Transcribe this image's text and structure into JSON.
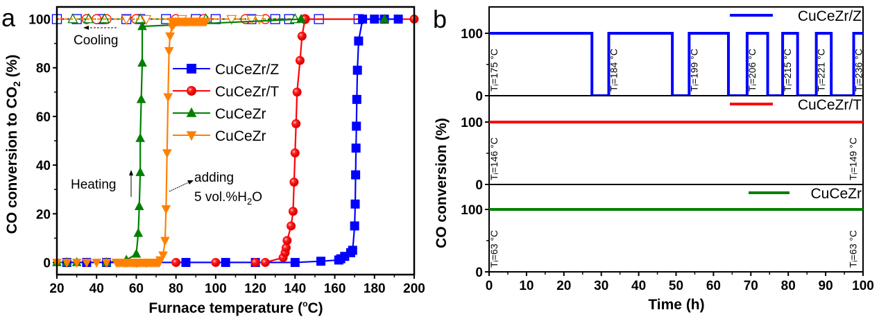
{
  "chart_data": [
    {
      "panel": "a",
      "type": "line",
      "title": "",
      "xlabel": "Furnace temperature (°C)",
      "ylabel": "CO conversion to CO2 (%)",
      "xlim": [
        20,
        200
      ],
      "ylim": [
        -5,
        105
      ],
      "xticks": [
        20,
        40,
        60,
        80,
        100,
        120,
        140,
        160,
        180,
        200
      ],
      "yticks": [
        0,
        20,
        40,
        60,
        80,
        100
      ],
      "legend_position": "center-right",
      "legend": [
        "CuCeZr/Z",
        "CuCeZr/T",
        "CuCeZr",
        "CuCeZr"
      ],
      "annotations": [
        "Cooling",
        "Heating",
        "adding",
        "5 vol.%H2O"
      ],
      "series": [
        {
          "name": "CuCeZr/Z",
          "color": "#0000ff",
          "marker": "square",
          "heating": {
            "x": [
              25,
              35,
              45,
              85,
              105,
              120,
              140,
              153,
              162,
              163,
              165,
              168,
              169,
              170,
              170.3,
              170.5,
              170.7,
              170.9,
              171.1,
              171.4,
              172,
              174,
              180,
              185,
              192
            ],
            "y": [
              0,
              0,
              0,
              0,
              0,
              0,
              0,
              0.5,
              1,
              1.5,
              2.5,
              4,
              5,
              15,
              24,
              36,
              47,
              56,
              67,
              79,
              91,
              100,
              100,
              100,
              100
            ]
          },
          "cooling": {
            "x": [
              20,
              30,
              42,
              55,
              62,
              75,
              90,
              100,
              118,
              130,
              137,
              152,
              172
            ],
            "y": [
              100,
              100,
              100,
              100,
              100,
              100,
              100,
              100,
              100,
              100,
              100,
              100,
              100
            ]
          }
        },
        {
          "name": "CuCeZr/T",
          "color": "#ff0000",
          "marker": "circle",
          "heating": {
            "x": [
              80,
              100,
              120,
              125,
              134,
              135,
              135.5,
              136,
              138,
              139,
              139.5,
              140,
              140.5,
              141,
              142.5,
              143.5,
              145,
              200
            ],
            "y": [
              0,
              0,
              0,
              0,
              2,
              4,
              6,
              9,
              15,
              21,
              33,
              45,
              57,
              70,
              83,
              93,
              100,
              100
            ]
          },
          "cooling": {
            "x": [
              35,
              40,
              45,
              60,
              80,
              94,
              115,
              125,
              145
            ],
            "y": [
              100,
              100,
              100,
              100,
              100,
              100,
              100,
              100,
              100
            ]
          }
        },
        {
          "name": "CuCeZr",
          "color": "#008000",
          "marker": "triangle-up",
          "heating": {
            "x": [
              20,
              25,
              30,
              45,
              55,
              60,
              61,
              61.5,
              62,
              62,
              62.5,
              63,
              63,
              143,
              185
            ],
            "y": [
              0,
              0,
              0,
              0,
              1,
              3.5,
              12,
              23,
              37,
              51,
              67,
              82,
              97,
              100,
              100
            ]
          },
          "cooling": {
            "x": [
              28,
              36,
              44,
              62,
              95,
              140
            ],
            "y": [
              100,
              100,
              100,
              100,
              100,
              100
            ]
          }
        },
        {
          "name": "CuCeZr (adding 5 vol.%H2O)",
          "color": "#ff8000",
          "marker": "triangle-down",
          "heating": {
            "x": [
              20,
              25,
              30,
              35,
              40,
              45,
              50,
              55,
              60,
              65,
              70,
              72,
              73.5,
              74.5,
              75,
              75.5,
              76,
              76.5,
              77,
              78,
              79,
              80,
              85,
              90,
              95
            ],
            "y": [
              0,
              0,
              0,
              0,
              0,
              0,
              0,
              0,
              0,
              0,
              0,
              1,
              3,
              9,
              22,
              45,
              68,
              87,
              93,
              97,
              98,
              99,
              99,
              99,
              99
            ]
          },
          "cooling": {
            "x": [
              55,
              65,
              83,
              108,
              118,
              122
            ],
            "y": [
              100,
              100,
              100,
              100,
              100,
              100
            ]
          }
        }
      ]
    },
    {
      "panel": "b",
      "type": "line",
      "title": "",
      "xlabel": "Time (h)",
      "ylabel": "CO conversion (%)",
      "xlim": [
        0,
        100
      ],
      "xticks": [
        0,
        10,
        20,
        30,
        40,
        50,
        60,
        70,
        80,
        90,
        100
      ],
      "subplots": [
        {
          "name": "CuCeZr/Z",
          "color": "#0000ff",
          "ylim": [
            0,
            100
          ],
          "yticks": [
            0,
            100
          ],
          "legend_position": "top-right",
          "x": [
            0,
            27.5,
            27.5,
            32,
            32,
            49,
            49,
            53.5,
            53.5,
            64,
            64,
            69,
            69,
            74.5,
            74.5,
            78.5,
            78.5,
            82.5,
            82.5,
            87.5,
            87.5,
            91.5,
            91.5,
            97.5,
            97.5,
            101.5,
            101.5,
            105
          ],
          "y": [
            100,
            100,
            0,
            0,
            100,
            100,
            0,
            0,
            100,
            100,
            0,
            0,
            100,
            100,
            0,
            0,
            100,
            100,
            0,
            0,
            100,
            100,
            0,
            0,
            100,
            100,
            0,
            0
          ],
          "labels": [
            {
              "x": 1.5,
              "text": "Tᵢ=175 °C"
            },
            {
              "x": 33.5,
              "text": "Tᵢ=184 °C"
            },
            {
              "x": 55,
              "text": "Tᵢ=199 °C"
            },
            {
              "x": 70.5,
              "text": "Tᵢ=206 °C"
            },
            {
              "x": 80,
              "text": "Tᵢ=215 °C"
            },
            {
              "x": 89,
              "text": "Tᵢ=221 °C"
            },
            {
              "x": 99,
              "text": "Tᵢ=236 °C"
            }
          ]
        },
        {
          "name": "CuCeZr/T",
          "color": "#ff0000",
          "ylim": [
            0,
            100
          ],
          "yticks": [
            0,
            100
          ],
          "legend_position": "top-right",
          "x": [
            0,
            100
          ],
          "y": [
            100,
            100
          ],
          "labels": [
            {
              "x": 1.5,
              "text": "Tᵢ=146 °C"
            },
            {
              "x": 97.5,
              "text": "Tᵢ=149 °C"
            }
          ]
        },
        {
          "name": "CuCeZr",
          "color": "#008000",
          "ylim": [
            0,
            100
          ],
          "yticks": [
            0,
            100
          ],
          "legend_position": "top-right",
          "x": [
            0,
            100
          ],
          "y": [
            100,
            100
          ],
          "labels": [
            {
              "x": 1.5,
              "text": "Tᵢ=63 °C"
            },
            {
              "x": 97.5,
              "text": "Tᵢ=63 °C"
            }
          ]
        }
      ]
    }
  ],
  "labels": {
    "panel_a": "a",
    "panel_b": "b",
    "ylabel_a_pre": "CO conversion to CO",
    "ylabel_a_sub": "2",
    "ylabel_a_post": " (%)",
    "xlabel_a_pre": "Furnace temperature (",
    "xlabel_a_deg": "o",
    "xlabel_a_post": "C)",
    "ylabel_b": "CO conversion (%)",
    "xlabel_b": "Time (h)",
    "cooling": "Cooling",
    "heating": "Heating",
    "adding": "adding",
    "h2o_pre": "5 vol.%H",
    "h2o_sub": "2",
    "h2o_post": "O"
  }
}
